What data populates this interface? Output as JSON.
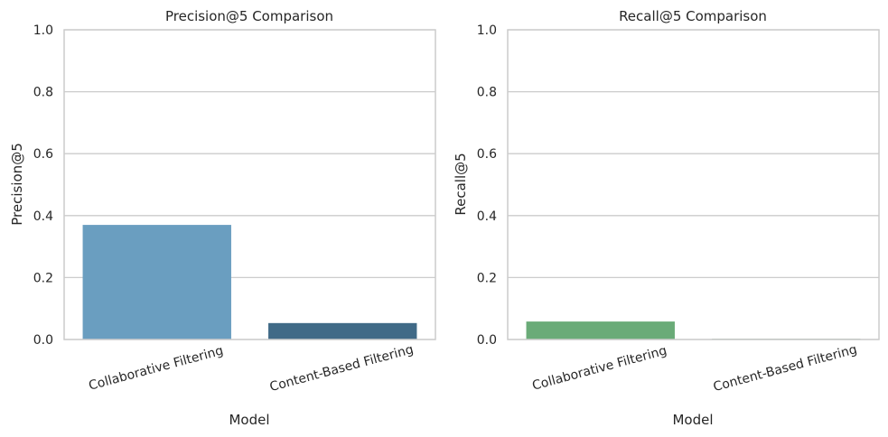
{
  "chart_data": [
    {
      "type": "bar",
      "title": "Precision@5 Comparison",
      "xlabel": "Model",
      "ylabel": "Precision@5",
      "categories": [
        "Collaborative Filtering",
        "Content-Based Filtering"
      ],
      "values": [
        0.37,
        0.053
      ],
      "colors": [
        "#6a9ec0",
        "#406a87"
      ],
      "ylim": [
        0,
        1.0
      ],
      "yticks": [
        "0.0",
        "0.2",
        "0.4",
        "0.6",
        "0.8",
        "1.0"
      ],
      "grid": true
    },
    {
      "type": "bar",
      "title": "Recall@5 Comparison",
      "xlabel": "Model",
      "ylabel": "Recall@5",
      "categories": [
        "Collaborative Filtering",
        "Content-Based Filtering"
      ],
      "values": [
        0.058,
        0.002
      ],
      "colors": [
        "#6aab78",
        "#3f7a50"
      ],
      "ylim": [
        0,
        1.0
      ],
      "yticks": [
        "0.0",
        "0.2",
        "0.4",
        "0.6",
        "0.8",
        "1.0"
      ],
      "grid": true
    }
  ]
}
